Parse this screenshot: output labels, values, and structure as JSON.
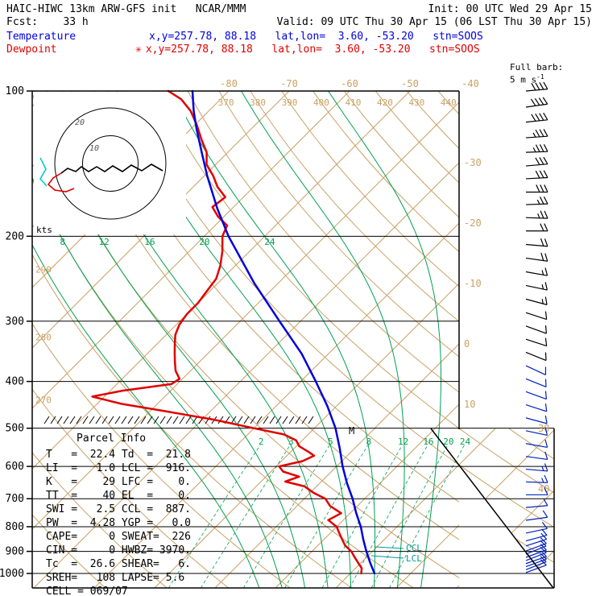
{
  "header": {
    "model_line": "HAIC-HIWC 13km ARW-GFS init   NCAR/MMM",
    "init_label": "Init: 00 UTC Wed 29 Apr 15",
    "fcst_label": "Fcst:    33 h",
    "valid_label": "Valid: 09 UTC Thu 30 Apr 15 (06 LST Thu 30 Apr 15)",
    "temp_legend": "Temperature",
    "temp_info": "x,y=257.78, 88.18   lat,lon=  3.60, -53.20   stn=SOOS",
    "dew_legend": "Dewpoint",
    "dew_marker": "✳",
    "dew_info": "x,y=257.78, 88.18   lat,lon=  3.60, -53.20   stn=SOOS"
  },
  "barb_legend": {
    "title": "Full barb:",
    "value": "5 m s",
    "sup": "-1"
  },
  "axes": {
    "pressure_ticks": [
      100,
      200,
      300,
      400,
      500,
      600,
      700,
      800,
      900,
      1000
    ],
    "top_isotherm_labels": [
      -80,
      -70,
      -60,
      -50,
      -40
    ],
    "right_isotherm_labels": [
      -30,
      -20,
      -10,
      0,
      10
    ],
    "far_right_isotherm_labels": [
      30,
      40
    ],
    "theta_labels": [
      370,
      380,
      390,
      400,
      410,
      420,
      430,
      440
    ],
    "dry_adiabat_left_labels": [
      270,
      280,
      290
    ],
    "moist_adiabat_labels": [
      8,
      12,
      16,
      20,
      24
    ],
    "mixing_ratio_labels": [
      2,
      3,
      5,
      8,
      12,
      16,
      20,
      24
    ]
  },
  "hodograph": {
    "unit_label": "kts",
    "ring_labels": [
      "10",
      "20"
    ],
    "trace_black": [
      [
        202,
        212
      ],
      [
        188,
        204
      ],
      [
        176,
        212
      ],
      [
        163,
        205
      ],
      [
        152,
        213
      ],
      [
        140,
        206
      ],
      [
        130,
        213
      ],
      [
        120,
        207
      ],
      [
        110,
        213
      ],
      [
        101,
        207
      ],
      [
        94,
        213
      ],
      [
        84,
        209
      ],
      [
        76,
        215
      ]
    ],
    "trace_red": [
      [
        76,
        215
      ],
      [
        66,
        221
      ],
      [
        60,
        229
      ],
      [
        68,
        236
      ],
      [
        82,
        238
      ],
      [
        92,
        234
      ]
    ],
    "trace_cyan": [
      [
        50,
        196
      ],
      [
        57,
        210
      ],
      [
        50,
        222
      ],
      [
        58,
        231
      ]
    ]
  },
  "annotations": {
    "ccl_label": "CCL",
    "lcl_label": "LCL",
    "m_label": "M"
  },
  "parcel_info": {
    "title": "Parcel Info",
    "lines": [
      "T   =  22.4 Td  =  21.8",
      "LI  =   1.0 LCL =  916.",
      "K   =    29 LFC =    0.",
      "TT  =    40 EL  =    0.",
      "SWI =   2.5 CCL =  887.",
      "PW  =  4.28 YGP =   0.0",
      "CAPE=     0 SWEAT=  226",
      "CIN =     0 HWBZ= 3970.",
      "Tc  =  26.6 SHEAR=   6.",
      "SREH=   108 LAPSE= 5.6",
      "CELL = 069/07"
    ]
  },
  "colors": {
    "tan": "#c8a165",
    "green": "#00a050",
    "red": "#e10000",
    "blue": "#0000dd",
    "barb_blue": "#0022bb",
    "teal": "#009898",
    "cyan": "#00cccc"
  },
  "chart_data": {
    "type": "skewt-log-p",
    "pressure_range_hpa": [
      100,
      1050
    ],
    "temperature_profile_c": [
      [
        1000,
        24.0
      ],
      [
        950,
        21.5
      ],
      [
        900,
        19.0
      ],
      [
        850,
        16.5
      ],
      [
        800,
        14.0
      ],
      [
        750,
        11.0
      ],
      [
        700,
        8.0
      ],
      [
        650,
        4.5
      ],
      [
        600,
        1.0
      ],
      [
        550,
        -2.5
      ],
      [
        500,
        -6.5
      ],
      [
        450,
        -11.5
      ],
      [
        400,
        -17.5
      ],
      [
        350,
        -24.5
      ],
      [
        300,
        -33.5
      ],
      [
        250,
        -44.0
      ],
      [
        200,
        -56.0
      ],
      [
        175,
        -62.5
      ],
      [
        150,
        -69.5
      ],
      [
        135,
        -74.0
      ],
      [
        120,
        -79.0
      ],
      [
        110,
        -82.5
      ],
      [
        100,
        -86.0
      ]
    ],
    "dewpoint_profile_c": [
      [
        1000,
        21.8
      ],
      [
        975,
        21.0
      ],
      [
        950,
        19.5
      ],
      [
        925,
        18.0
      ],
      [
        900,
        16.5
      ],
      [
        875,
        14.5
      ],
      [
        850,
        13.0
      ],
      [
        825,
        11.5
      ],
      [
        800,
        10.0
      ],
      [
        775,
        7.5
      ],
      [
        750,
        8.5
      ],
      [
        725,
        5.5
      ],
      [
        700,
        3.5
      ],
      [
        680,
        0.5
      ],
      [
        660,
        -2.0
      ],
      [
        645,
        -6.0
      ],
      [
        630,
        -4.5
      ],
      [
        615,
        -8.0
      ],
      [
        600,
        -9.5
      ],
      [
        585,
        -6.5
      ],
      [
        570,
        -5.5
      ],
      [
        560,
        -7.0
      ],
      [
        545,
        -9.5
      ],
      [
        530,
        -11.0
      ],
      [
        515,
        -14.0
      ],
      [
        500,
        -20.0
      ],
      [
        480,
        -28.0
      ],
      [
        460,
        -38.0
      ],
      [
        445,
        -46.0
      ],
      [
        430,
        -52.0
      ],
      [
        418,
        -48.0
      ],
      [
        405,
        -41.0
      ],
      [
        395,
        -40.5
      ],
      [
        380,
        -42.5
      ],
      [
        365,
        -44.0
      ],
      [
        350,
        -45.5
      ],
      [
        335,
        -47.0
      ],
      [
        320,
        -48.5
      ],
      [
        305,
        -49.5
      ],
      [
        290,
        -50.0
      ],
      [
        275,
        -50.0
      ],
      [
        260,
        -50.5
      ],
      [
        245,
        -51.0
      ],
      [
        230,
        -52.5
      ],
      [
        215,
        -54.5
      ],
      [
        200,
        -57.0
      ],
      [
        190,
        -58.0
      ],
      [
        182,
        -61.0
      ],
      [
        174,
        -63.5
      ],
      [
        166,
        -63.0
      ],
      [
        158,
        -66.0
      ],
      [
        150,
        -68.5
      ],
      [
        142,
        -71.5
      ],
      [
        134,
        -73.5
      ],
      [
        126,
        -76.5
      ],
      [
        118,
        -79.5
      ],
      [
        110,
        -83.0
      ],
      [
        104,
        -86.5
      ],
      [
        100,
        -90.0
      ]
    ],
    "winds_p_dir_spd": [
      [
        100,
        85,
        21
      ],
      [
        108,
        82,
        22
      ],
      [
        116,
        84,
        20
      ],
      [
        125,
        86,
        19
      ],
      [
        134,
        88,
        18
      ],
      [
        143,
        85,
        17
      ],
      [
        152,
        87,
        16
      ],
      [
        162,
        90,
        15
      ],
      [
        172,
        88,
        14
      ],
      [
        183,
        92,
        13
      ],
      [
        195,
        90,
        12
      ],
      [
        208,
        95,
        11
      ],
      [
        222,
        98,
        10
      ],
      [
        237,
        100,
        9
      ],
      [
        253,
        102,
        8
      ],
      [
        270,
        105,
        8
      ],
      [
        288,
        108,
        7
      ],
      [
        307,
        110,
        7
      ],
      [
        327,
        108,
        6
      ],
      [
        348,
        112,
        6
      ],
      [
        371,
        115,
        6
      ],
      [
        395,
        112,
        5
      ],
      [
        420,
        110,
        5
      ],
      [
        447,
        108,
        6
      ],
      [
        476,
        105,
        6
      ],
      [
        506,
        102,
        7
      ],
      [
        538,
        100,
        7
      ],
      [
        572,
        98,
        7
      ],
      [
        608,
        95,
        8
      ],
      [
        646,
        92,
        8
      ],
      [
        687,
        90,
        7
      ],
      [
        730,
        85,
        7
      ],
      [
        776,
        82,
        6
      ],
      [
        825,
        78,
        6
      ],
      [
        856,
        75,
        6
      ],
      [
        877,
        72,
        5
      ],
      [
        898,
        70,
        5
      ],
      [
        912,
        68,
        5
      ],
      [
        926,
        70,
        6
      ],
      [
        940,
        69,
        6
      ],
      [
        954,
        71,
        6
      ],
      [
        968,
        70,
        7
      ],
      [
        982,
        69,
        7
      ],
      [
        996,
        70,
        7
      ]
    ],
    "isotherm_step_c": 10,
    "dry_adiabats_k": [
      250,
      260,
      270,
      280,
      290,
      300,
      310,
      320,
      330,
      340,
      350,
      360,
      370,
      380,
      390,
      400,
      410,
      420,
      430,
      440
    ],
    "moist_adiabats_c": [
      4,
      8,
      12,
      16,
      20,
      24,
      28,
      32
    ],
    "mixing_ratio_gkg": [
      2,
      3,
      5,
      8,
      12,
      16,
      20,
      24
    ],
    "parcel": {
      "T": 22.4,
      "Td": 21.8,
      "LI": 1.0,
      "K": 29,
      "TT": 40,
      "SWI": 2.5,
      "PW": 4.28,
      "CAPE": 0,
      "CIN": 0,
      "Tc": 26.6,
      "SREH": 108,
      "LCL": 916,
      "LFC": 0,
      "EL": 0,
      "CCL": 887,
      "YGP": 0.0,
      "SWEAT": 226,
      "HWBZ": 3970,
      "SHEAR": 6,
      "LAPSE": 5.6,
      "CELL": "069/07"
    }
  }
}
